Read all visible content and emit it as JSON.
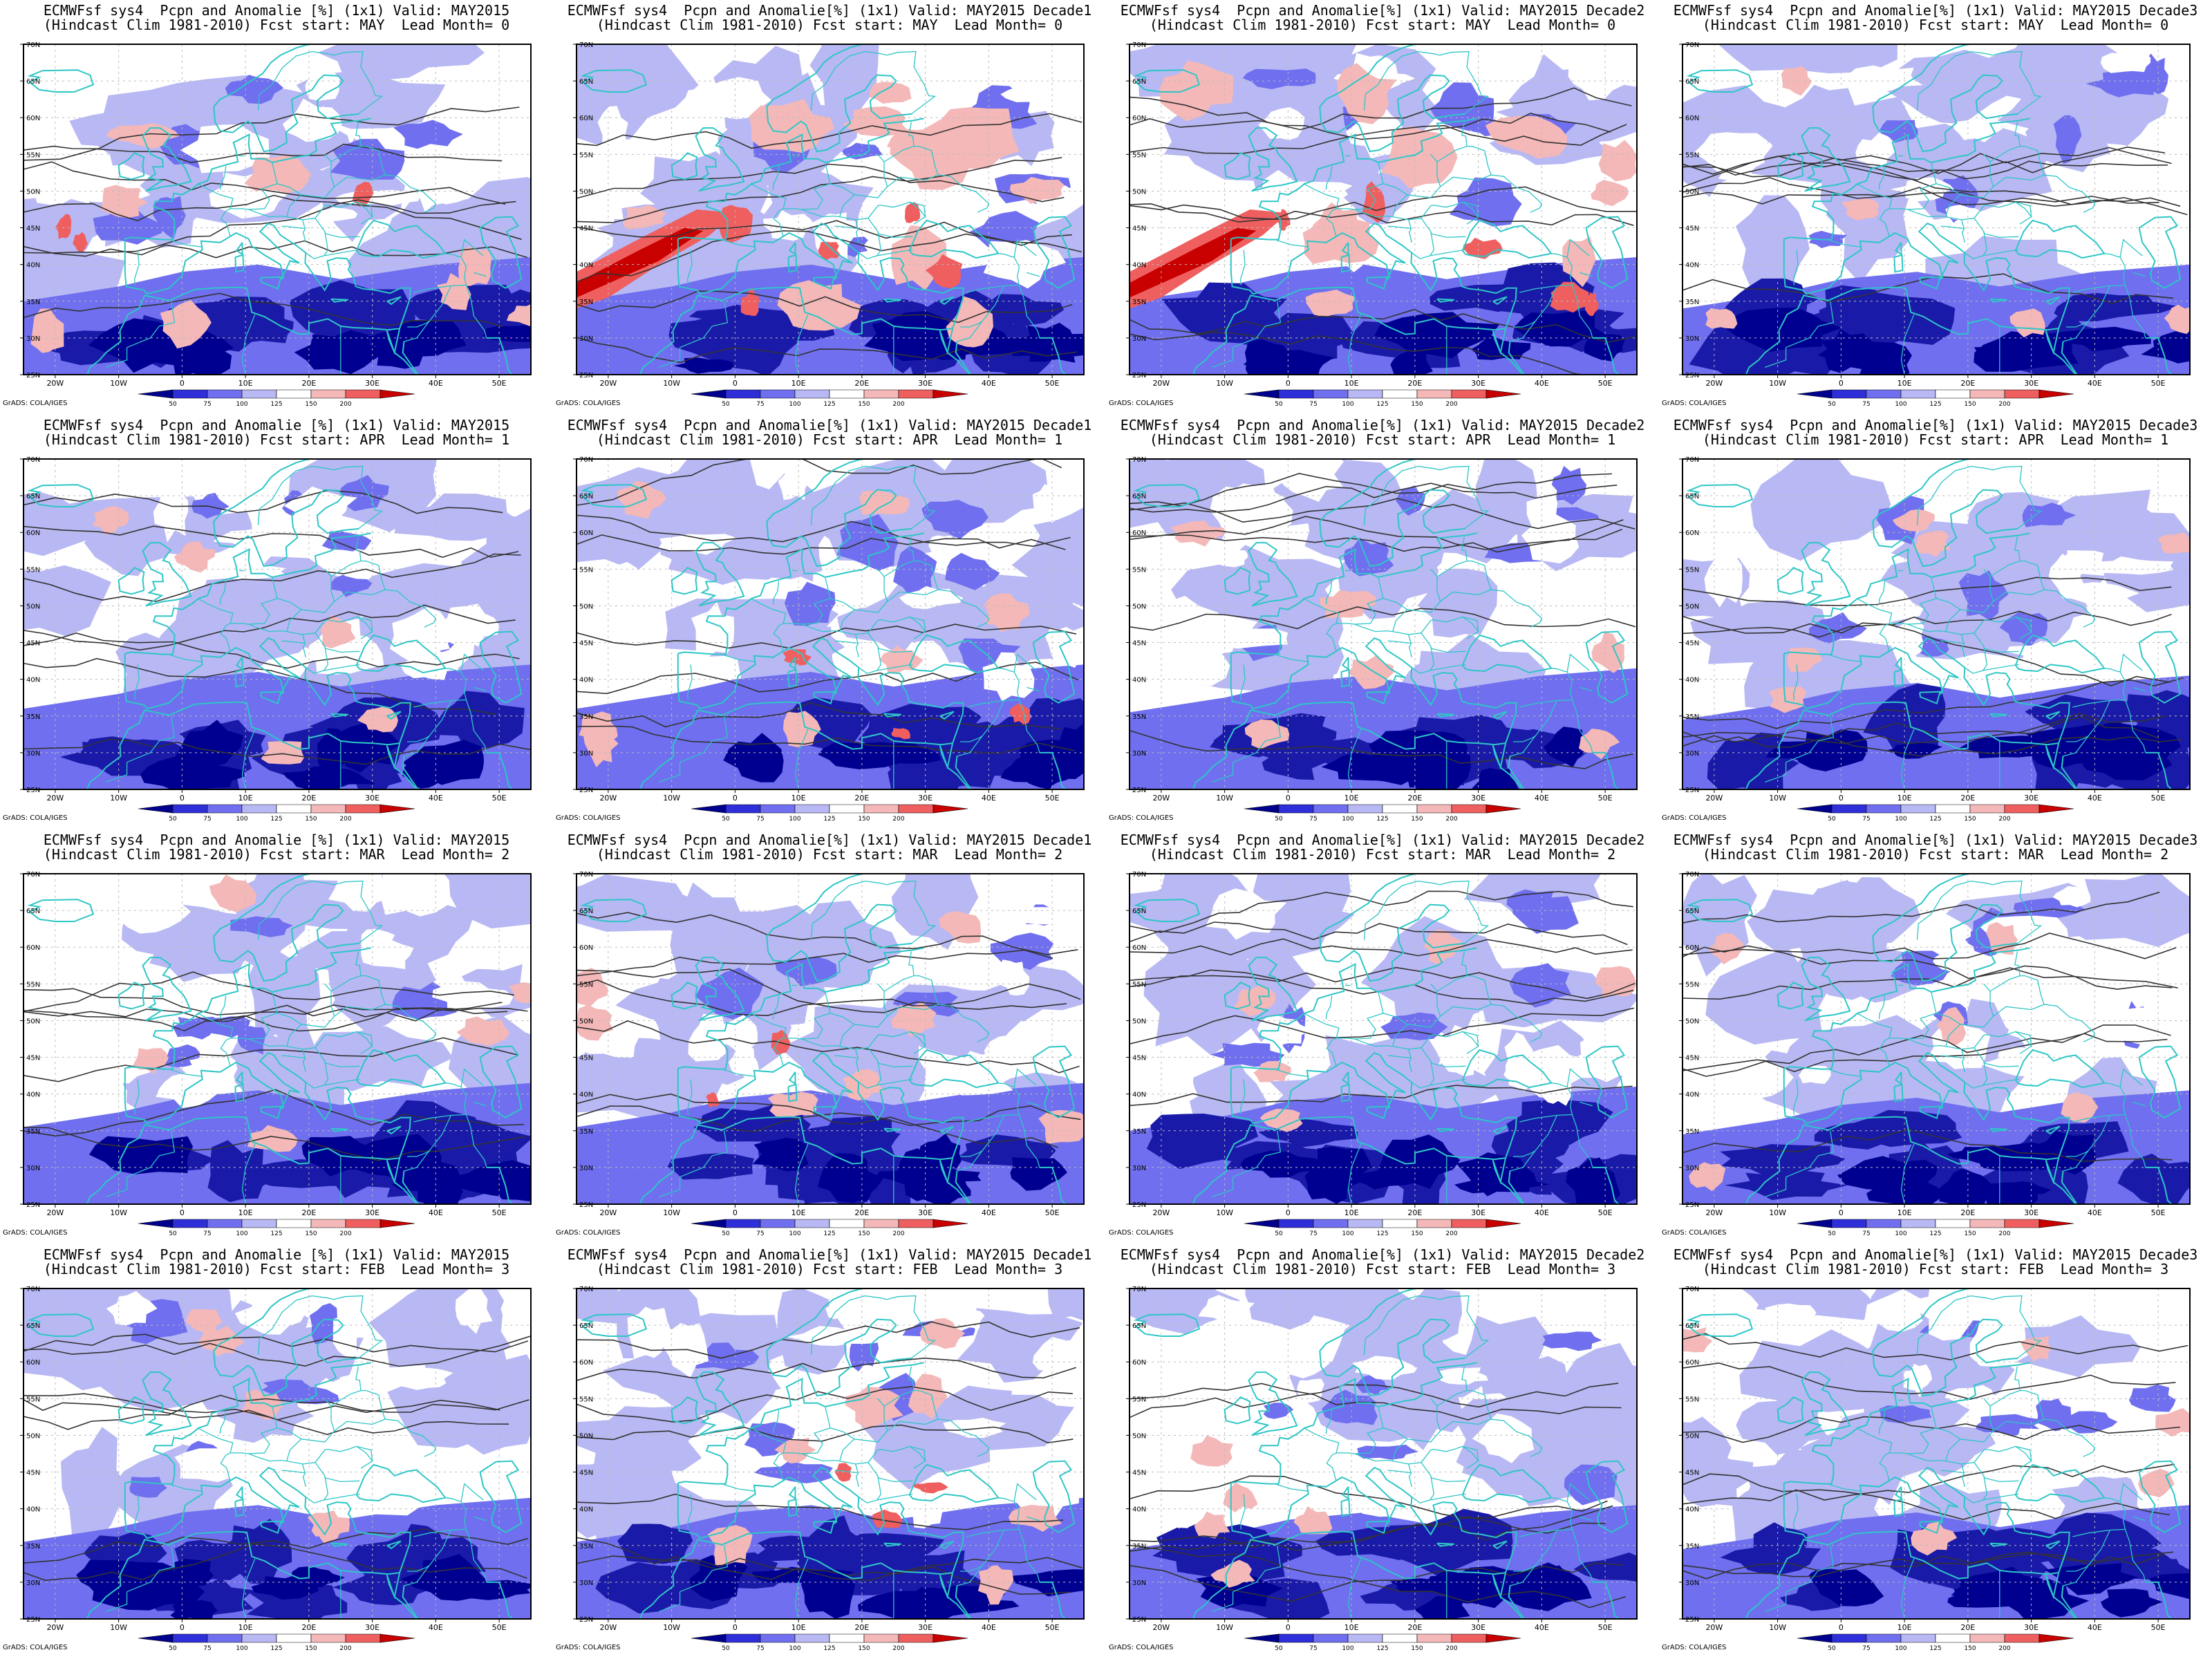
{
  "figure": {
    "colorbar_ticks": [
      "50",
      "75",
      "100",
      "125",
      "150",
      "200"
    ],
    "colorbar_colors": [
      "#00008f",
      "#2f2fd9",
      "#6f6fef",
      "#b8b8f4",
      "#ffffff",
      "#f4b8b8",
      "#ef5f5f",
      "#c80000"
    ],
    "lat_ticks": [
      "70N",
      "65N",
      "60N",
      "55N",
      "50N",
      "45N",
      "40N",
      "35N",
      "30N",
      "25N"
    ],
    "lon_ticks": [
      "20W",
      "10W",
      "0",
      "10E",
      "20E",
      "30E",
      "40E",
      "50E"
    ],
    "credit": "GrADS: COLA/IGES",
    "colors": {
      "coast": "#2ec6c6",
      "contour": "#333333",
      "sea_dry": "#1a1aa8",
      "deep_dry": "#000090",
      "light_dry": "#b8b8f4",
      "mid_dry": "#6f6fef",
      "light_wet": "#f4b8b8",
      "mid_wet": "#ef5f5f",
      "deep_wet": "#c80000"
    }
  },
  "panels": [
    {
      "title1": "ECMWFsf sys4  Pcpn and Anomalie [%] (1x1) Valid: MAY2015",
      "title2": "(Hindcast Clim 1981-2010) Fcst start: MAY  Lead Month= 0"
    },
    {
      "title1": "ECMWFsf sys4  Pcpn and Anomalie[%] (1x1) Valid: MAY2015 Decade1",
      "title2": "(Hindcast Clim 1981-2010) Fcst start: MAY  Lead Month= 0"
    },
    {
      "title1": "ECMWFsf sys4  Pcpn and Anomalie[%] (1x1) Valid: MAY2015 Decade2",
      "title2": "(Hindcast Clim 1981-2010) Fcst start: MAY  Lead Month= 0"
    },
    {
      "title1": "ECMWFsf sys4  Pcpn and Anomalie[%] (1x1) Valid: MAY2015 Decade3",
      "title2": "(Hindcast Clim 1981-2010) Fcst start: MAY  Lead Month= 0"
    },
    {
      "title1": "ECMWFsf sys4  Pcpn and Anomalie [%] (1x1) Valid: MAY2015",
      "title2": "(Hindcast Clim 1981-2010) Fcst start: APR  Lead Month= 1"
    },
    {
      "title1": "ECMWFsf sys4  Pcpn and Anomalie[%] (1x1) Valid: MAY2015 Decade1",
      "title2": "(Hindcast Clim 1981-2010) Fcst start: APR  Lead Month= 1"
    },
    {
      "title1": "ECMWFsf sys4  Pcpn and Anomalie[%] (1x1) Valid: MAY2015 Decade2",
      "title2": "(Hindcast Clim 1981-2010) Fcst start: APR  Lead Month= 1"
    },
    {
      "title1": "ECMWFsf sys4  Pcpn and Anomalie[%] (1x1) Valid: MAY2015 Decade3",
      "title2": "(Hindcast Clim 1981-2010) Fcst start: APR  Lead Month= 1"
    },
    {
      "title1": "ECMWFsf sys4  Pcpn and Anomalie [%] (1x1) Valid: MAY2015",
      "title2": "(Hindcast Clim 1981-2010) Fcst start: MAR  Lead Month= 2"
    },
    {
      "title1": "ECMWFsf sys4  Pcpn and Anomalie[%] (1x1) Valid: MAY2015 Decade1",
      "title2": "(Hindcast Clim 1981-2010) Fcst start: MAR  Lead Month= 2"
    },
    {
      "title1": "ECMWFsf sys4  Pcpn and Anomalie[%] (1x1) Valid: MAY2015 Decade2",
      "title2": "(Hindcast Clim 1981-2010) Fcst start: MAR  Lead Month= 2"
    },
    {
      "title1": "ECMWFsf sys4  Pcpn and Anomalie[%] (1x1) Valid: MAY2015 Decade3",
      "title2": "(Hindcast Clim 1981-2010) Fcst start: MAR  Lead Month= 2"
    },
    {
      "title1": "ECMWFsf sys4  Pcpn and Anomalie [%] (1x1) Valid: MAY2015",
      "title2": "(Hindcast Clim 1981-2010) Fcst start: FEB  Lead Month= 3"
    },
    {
      "title1": "ECMWFsf sys4  Pcpn and Anomalie[%] (1x1) Valid: MAY2015 Decade1",
      "title2": "(Hindcast Clim 1981-2010) Fcst start: FEB  Lead Month= 3"
    },
    {
      "title1": "ECMWFsf sys4  Pcpn and Anomalie[%] (1x1) Valid: MAY2015 Decade2",
      "title2": "(Hindcast Clim 1981-2010) Fcst start: FEB  Lead Month= 3"
    },
    {
      "title1": "ECMWFsf sys4  Pcpn and Anomalie[%] (1x1) Valid: MAY2015 Decade3",
      "title2": "(Hindcast Clim 1981-2010) Fcst start: FEB  Lead Month= 3"
    }
  ]
}
